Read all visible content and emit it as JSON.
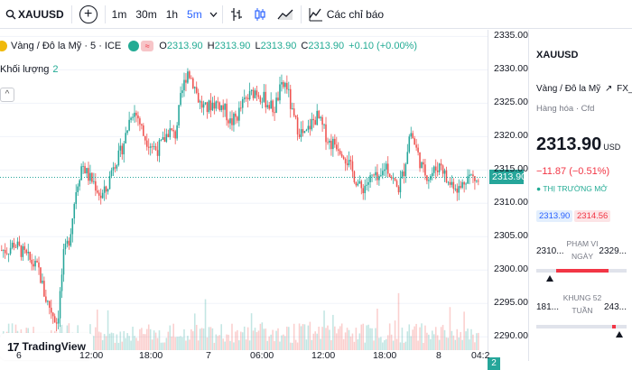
{
  "toolbar": {
    "symbol": "XAUUSD",
    "timeframes": [
      {
        "label": "1m",
        "active": false
      },
      {
        "label": "30m",
        "active": false
      },
      {
        "label": "1h",
        "active": false
      },
      {
        "label": "5m",
        "active": true
      }
    ],
    "indicators_label": "Các chỉ báo",
    "icons": [
      "search-icon",
      "add-symbol-icon",
      "chevron-down-icon",
      "bar-style-icon",
      "candle-style-icon",
      "compare-icon",
      "indicators-icon"
    ]
  },
  "legend": {
    "title": "Vàng / Đô la Mỹ · 5 · ICE",
    "open_key": "O",
    "open": "2313.90",
    "high_key": "H",
    "high": "2313.90",
    "low_key": "L",
    "low": "2313.90",
    "close_key": "C",
    "close": "2313.90",
    "change": "+0.10 (+0.00%)",
    "volume_label": "Khối lượng",
    "volume_value": "2"
  },
  "price_scale": {
    "ticks": [
      "2335.00",
      "2330.00",
      "2325.00",
      "2320.00",
      "2315.00",
      "2310.00",
      "2305.00",
      "2300.00",
      "2295.00",
      "2290.00"
    ],
    "current": "2313.90",
    "volume_badge": "2"
  },
  "time_axis": {
    "ticks": [
      "6",
      "12:00",
      "18:00",
      "7",
      "06:00",
      "12:00",
      "18:00",
      "8",
      "04:2"
    ]
  },
  "watermark": "TradingView",
  "panel": {
    "symbol": "XAUUSD",
    "description": "Vàng / Đô la Mỹ",
    "exchange": "FX_IDC",
    "subtext": "Hàng hóa · Cfd",
    "price": "2313.90",
    "currency": "USD",
    "change": "−11.87 (−0.51%)",
    "market_status": "● THỊ TRƯỜNG MỞ",
    "bid": "2313.90",
    "ask": "2314.56",
    "day_range": {
      "low": "2310...",
      "label": "PHẠM VI NGÀY",
      "high": "2329...",
      "position": 0.15
    },
    "week52_range": {
      "low": "181...",
      "label": "KHUNG 52 TUẦN",
      "high": "243...",
      "position": 0.92
    }
  },
  "colors": {
    "up": "#26a69a",
    "down": "#ef5350",
    "accent": "#2962ff"
  },
  "chart_data": {
    "type": "candlestick",
    "ylim": [
      2288,
      2336
    ],
    "current": 2313.9,
    "price_path": [
      2303,
      2303,
      2304,
      2303,
      2302,
      2301,
      2300,
      2296,
      2294,
      2292,
      2302,
      2305,
      2312,
      2316,
      2314,
      2313,
      2311,
      2312,
      2316,
      2317,
      2320,
      2324,
      2323,
      2320,
      2319,
      2318,
      2319,
      2321,
      2320,
      2326,
      2330,
      2328,
      2325,
      2324,
      2325,
      2325,
      2324,
      2322,
      2323,
      2325,
      2326,
      2327,
      2326,
      2325,
      2324,
      2327,
      2328,
      2323,
      2321,
      2320,
      2322,
      2323,
      2321,
      2319,
      2319,
      2318,
      2316,
      2314,
      2312,
      2313,
      2314,
      2313,
      2316,
      2314,
      2312,
      2315,
      2321,
      2318,
      2315,
      2314,
      2315,
      2316,
      2313,
      2313,
      2312,
      2314,
      2314,
      2313
    ]
  }
}
